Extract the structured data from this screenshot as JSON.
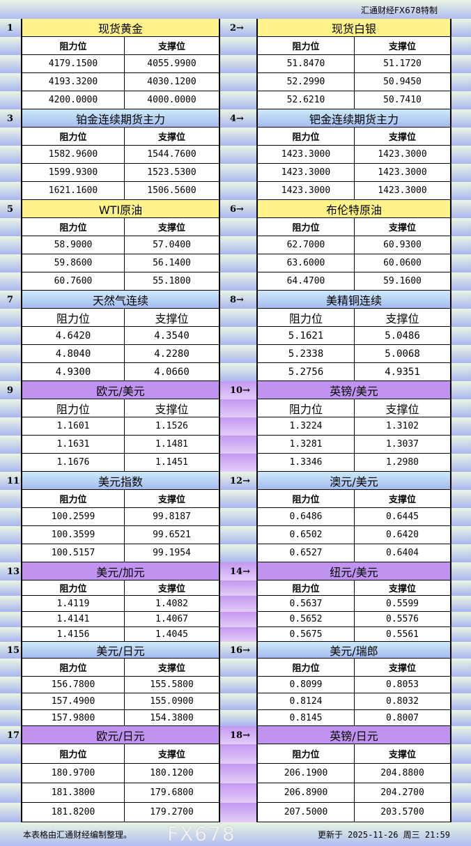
{
  "header": {
    "brand": "汇通财经FX678特制"
  },
  "columns": {
    "resistance": "阻力位",
    "support": "支撑位"
  },
  "colors": {
    "yellow": "#fff38a",
    "blue": "#a4bcf0",
    "purple": "#c193f0"
  },
  "sections": [
    {
      "num": "1",
      "title": "现货黄金",
      "color": "yellow",
      "resistance": [
        "4179.1500",
        "4193.3200",
        "4200.0000"
      ],
      "support": [
        "4055.9900",
        "4030.1200",
        "4000.0000"
      ]
    },
    {
      "num": "2→",
      "title": "现货白银",
      "color": "yellow",
      "resistance": [
        "51.8470",
        "52.2990",
        "52.6210"
      ],
      "support": [
        "51.1720",
        "50.9450",
        "50.7410"
      ]
    },
    {
      "num": "3",
      "title": "铂金连续期货主力",
      "color": "blue",
      "resistance": [
        "1582.9600",
        "1599.9300",
        "1621.1600"
      ],
      "support": [
        "1544.7600",
        "1523.5300",
        "1506.5600"
      ]
    },
    {
      "num": "4→",
      "title": "钯金连续期货主力",
      "color": "blue",
      "resistance": [
        "1423.3000",
        "1423.3000",
        "1423.3000"
      ],
      "support": [
        "1423.3000",
        "1423.3000",
        "1423.3000"
      ]
    },
    {
      "num": "5",
      "title": "WTI原油",
      "color": "yellow",
      "resistance": [
        "58.9000",
        "59.8600",
        "60.7600"
      ],
      "support": [
        "57.0400",
        "56.1400",
        "55.1800"
      ]
    },
    {
      "num": "6→",
      "title": "布伦特原油",
      "color": "yellow",
      "resistance": [
        "62.7000",
        "63.6000",
        "64.4700"
      ],
      "support": [
        "60.9300",
        "60.0600",
        "59.1600"
      ]
    },
    {
      "num": "7",
      "title": "天然气连续",
      "color": "blue",
      "resistance": [
        "4.6420",
        "4.8040",
        "4.9300"
      ],
      "support": [
        "4.3540",
        "4.2280",
        "4.0660"
      ]
    },
    {
      "num": "8→",
      "title": "美精铜连续",
      "color": "blue",
      "resistance": [
        "5.1621",
        "5.2338",
        "5.2756"
      ],
      "support": [
        "5.0486",
        "5.0068",
        "4.9351"
      ]
    },
    {
      "num": "9",
      "title": "欧元/美元",
      "color": "purple",
      "resistance": [
        "1.1601",
        "1.1631",
        "1.1676"
      ],
      "support": [
        "1.1526",
        "1.1481",
        "1.1451"
      ]
    },
    {
      "num": "10→",
      "title": "英镑/美元",
      "color": "purple",
      "resistance": [
        "1.3224",
        "1.3281",
        "1.3346"
      ],
      "support": [
        "1.3102",
        "1.3037",
        "1.2980"
      ]
    },
    {
      "num": "11",
      "title": "美元指数",
      "color": "blue",
      "resistance": [
        "100.2599",
        "100.3599",
        "100.5157"
      ],
      "support": [
        "99.8187",
        "99.6521",
        "99.1954"
      ]
    },
    {
      "num": "12→",
      "title": "澳元/美元",
      "color": "blue",
      "resistance": [
        "0.6486",
        "0.6502",
        "0.6527"
      ],
      "support": [
        "0.6445",
        "0.6420",
        "0.6404"
      ]
    },
    {
      "num": "13",
      "title": "美元/加元",
      "color": "purple",
      "resistance": [
        "1.4119",
        "1.4141",
        "1.4156"
      ],
      "support": [
        "1.4082",
        "1.4067",
        "1.4045"
      ]
    },
    {
      "num": "14→",
      "title": "纽元/美元",
      "color": "purple",
      "resistance": [
        "0.5637",
        "0.5652",
        "0.5675"
      ],
      "support": [
        "0.5599",
        "0.5576",
        "0.5561"
      ]
    },
    {
      "num": "15",
      "title": "美元/日元",
      "color": "blue",
      "resistance": [
        "156.7800",
        "157.4900",
        "157.9800"
      ],
      "support": [
        "155.5800",
        "155.0900",
        "154.3800"
      ]
    },
    {
      "num": "16→",
      "title": "美元/瑞郎",
      "color": "blue",
      "resistance": [
        "0.8099",
        "0.8124",
        "0.8145"
      ],
      "support": [
        "0.8053",
        "0.8032",
        "0.8007"
      ]
    },
    {
      "num": "17",
      "title": "欧元/日元",
      "color": "purple",
      "resistance": [
        "180.9700",
        "181.3800",
        "181.8200"
      ],
      "support": [
        "180.1200",
        "179.6800",
        "179.2700"
      ]
    },
    {
      "num": "18→",
      "title": "英镑/日元",
      "color": "purple",
      "resistance": [
        "206.1900",
        "206.8900",
        "207.5000"
      ],
      "support": [
        "204.8800",
        "204.2700",
        "203.5700"
      ]
    }
  ],
  "footer": {
    "note": "本表格由汇通财经编制整理。",
    "updated": "更新于 2025-11-26 周三 21:59",
    "watermark": "FX678"
  }
}
